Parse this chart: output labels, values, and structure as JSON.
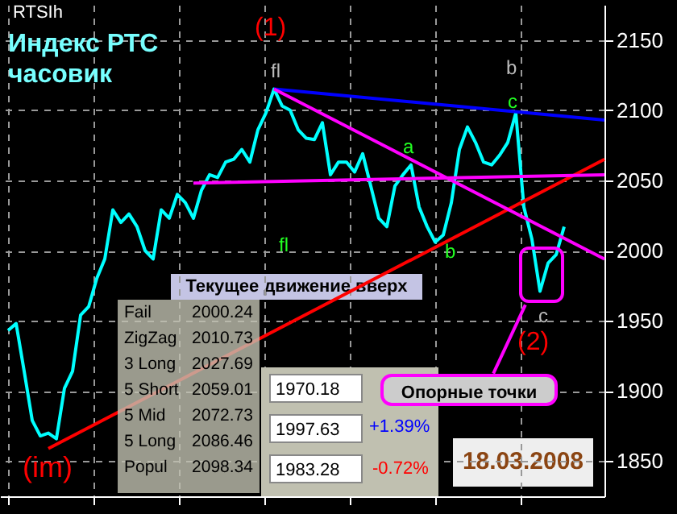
{
  "chart_data": {
    "type": "line",
    "title": "Индекс РТС часовик",
    "categories": [
      null,
      null,
      null,
      null,
      null,
      null,
      null,
      null,
      null,
      null,
      null,
      null,
      null,
      null,
      null,
      null,
      null,
      null,
      null,
      null,
      null,
      null,
      null,
      null,
      null,
      null,
      null,
      null,
      null,
      null,
      null,
      null,
      null,
      null,
      null,
      null,
      null,
      null,
      null,
      null,
      null,
      null,
      null,
      null,
      null,
      null,
      null,
      null,
      null,
      null,
      null,
      null,
      null,
      null,
      null,
      null,
      null,
      null,
      null,
      null,
      null,
      null,
      null,
      null,
      null,
      null,
      null,
      null,
      null,
      null,
      null,
      null,
      null,
      null,
      null
    ],
    "series": [
      {
        "color": "#00ffff",
        "values": [
          1943,
          1948,
          1914,
          1879,
          1868,
          1870,
          1866,
          1902,
          1914,
          1954,
          1960,
          1980,
          1994,
          2029,
          2020,
          2026,
          2017,
          2000,
          1994,
          2029,
          2023,
          2040,
          2034,
          2023,
          2043,
          2054,
          2052,
          2063,
          2065,
          2072,
          2063,
          2086,
          2098,
          2115,
          2103,
          2100,
          2086,
          2080,
          2079,
          2091,
          2054,
          2063,
          2063,
          2056,
          2069,
          2046,
          2023,
          2017,
          2046,
          2054,
          2061,
          2031,
          2017,
          2006,
          2011,
          2034,
          2072,
          2088,
          2077,
          2063,
          2061,
          2068,
          2077,
          2098,
          2031,
          2008,
          1971,
          1991,
          1997,
          2017,
          null,
          null,
          null,
          null,
          null
        ]
      },
      {
        "color": "#ff0000",
        "values": [
          null,
          null,
          null,
          null,
          null,
          1859,
          null,
          null,
          null,
          null,
          null,
          null,
          null,
          null,
          null,
          null,
          null,
          null,
          null,
          null,
          null,
          null,
          null,
          null,
          null,
          null,
          null,
          null,
          null,
          null,
          null,
          null,
          null,
          null,
          null,
          null,
          null,
          null,
          null,
          null,
          null,
          null,
          null,
          null,
          null,
          null,
          null,
          null,
          null,
          null,
          null,
          null,
          null,
          null,
          null,
          null,
          null,
          null,
          null,
          null,
          null,
          null,
          null,
          null,
          null,
          null,
          null,
          null,
          null,
          null,
          null,
          null,
          null,
          null,
          2065
        ]
      },
      {
        "color": "#0000ff",
        "values": [
          null,
          null,
          null,
          null,
          null,
          null,
          null,
          null,
          null,
          null,
          null,
          null,
          null,
          null,
          null,
          null,
          null,
          null,
          null,
          null,
          null,
          null,
          null,
          null,
          null,
          null,
          null,
          null,
          null,
          null,
          null,
          null,
          null,
          2115,
          null,
          null,
          null,
          null,
          null,
          null,
          null,
          null,
          null,
          null,
          null,
          null,
          null,
          null,
          null,
          null,
          null,
          null,
          null,
          null,
          null,
          null,
          null,
          null,
          null,
          null,
          null,
          null,
          null,
          null,
          null,
          null,
          null,
          null,
          null,
          null,
          null,
          null,
          null,
          null,
          2093
        ]
      },
      {
        "color": "#ff00ff",
        "values": [
          null,
          null,
          null,
          null,
          null,
          null,
          null,
          null,
          null,
          null,
          null,
          null,
          null,
          null,
          null,
          null,
          null,
          null,
          null,
          null,
          null,
          null,
          null,
          null,
          null,
          null,
          null,
          null,
          null,
          null,
          null,
          null,
          null,
          2115,
          null,
          null,
          null,
          null,
          null,
          null,
          null,
          null,
          null,
          null,
          null,
          null,
          null,
          null,
          null,
          null,
          null,
          null,
          null,
          null,
          null,
          null,
          null,
          null,
          null,
          null,
          null,
          null,
          null,
          null,
          null,
          null,
          null,
          null,
          null,
          null,
          null,
          null,
          null,
          null,
          1994
        ]
      },
      {
        "color": "#ff00ff",
        "values": [
          null,
          null,
          null,
          null,
          null,
          null,
          null,
          null,
          null,
          null,
          null,
          null,
          null,
          null,
          null,
          null,
          null,
          null,
          null,
          null,
          null,
          null,
          null,
          2048,
          null,
          null,
          null,
          null,
          null,
          null,
          null,
          null,
          null,
          null,
          null,
          null,
          null,
          null,
          null,
          null,
          null,
          null,
          null,
          null,
          null,
          null,
          null,
          null,
          null,
          null,
          null,
          null,
          null,
          null,
          null,
          null,
          null,
          null,
          null,
          null,
          null,
          null,
          null,
          null,
          null,
          null,
          null,
          null,
          null,
          null,
          null,
          null,
          null,
          null,
          2054
        ]
      }
    ],
    "ylim": [
      1825,
      2175
    ],
    "yticks": [
      1850,
      1900,
      1950,
      2000,
      2050,
      2100,
      2150
    ],
    "grid": true,
    "tick_labels": "y",
    "line_style": "solid",
    "annotations": [
      "RTSIh",
      "(1)",
      "fl",
      "a",
      "b",
      "c",
      "fl",
      "b",
      "c",
      "(2)",
      "(im)",
      "Текущее движение вверх",
      "Fail 2000.24",
      "ZigZag 2010.73",
      "3 Long 2027.69",
      "5 Short 2059.01",
      "5 Mid 2072.73",
      "5 Long 2086.46",
      "Popul 2098.34",
      "1970.18",
      "1997.63",
      "+1.39%",
      "1983.28",
      "-0.72%",
      "Опорные точки",
      "18.03.2008"
    ]
  }
}
